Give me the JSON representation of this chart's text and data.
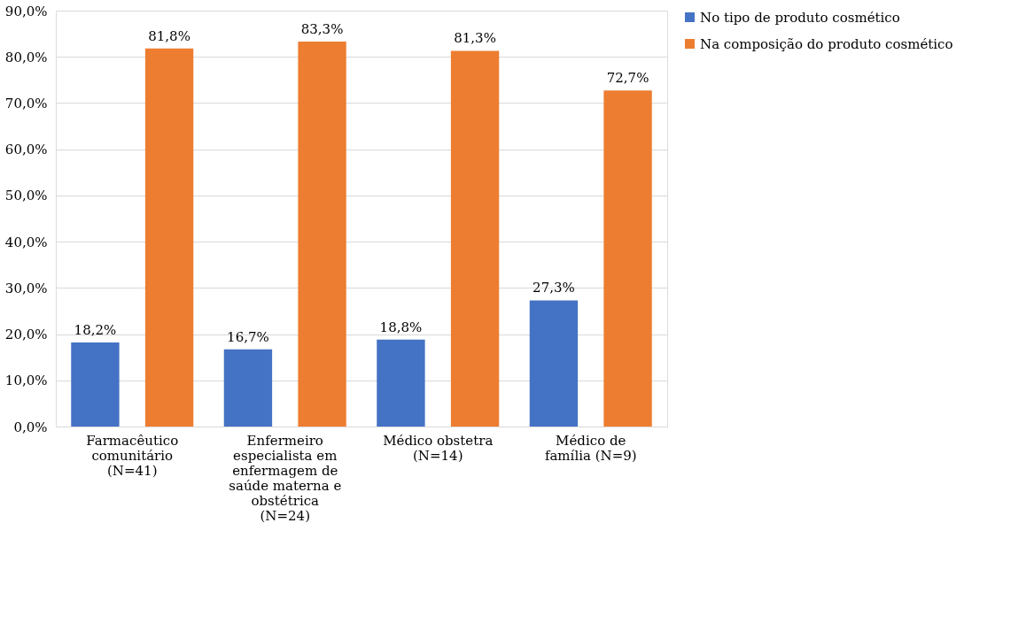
{
  "chart_data": {
    "type": "bar",
    "categories": [
      "Farmacêutico comunitário (N=41)",
      "Enfermeiro especialista em enfermagem de saúde materna e obstétrica (N=24)",
      "Médico obstetra (N=14)",
      "Médico de família (N=9)"
    ],
    "series": [
      {
        "name": "No tipo de produto cosmético",
        "color": "#4472c4",
        "values": [
          18.2,
          16.7,
          18.8,
          27.3
        ],
        "value_labels": [
          "18,2%",
          "16,7%",
          "18,8%",
          "27,3%"
        ]
      },
      {
        "name": "Na composição do produto cosmético",
        "color": "#ed7d31",
        "values": [
          81.8,
          83.3,
          81.3,
          72.7
        ],
        "value_labels": [
          "81,8%",
          "83,3%",
          "81,3%",
          "72,7%"
        ]
      }
    ],
    "ylim": [
      0,
      90
    ],
    "yticks": [
      {
        "value": 0,
        "label": "0,0%"
      },
      {
        "value": 10,
        "label": "10,0%"
      },
      {
        "value": 20,
        "label": "20,0%"
      },
      {
        "value": 30,
        "label": "30,0%"
      },
      {
        "value": 40,
        "label": "40,0%"
      },
      {
        "value": 50,
        "label": "50,0%"
      },
      {
        "value": 60,
        "label": "60,0%"
      },
      {
        "value": 70,
        "label": "70,0%"
      },
      {
        "value": 80,
        "label": "80,0%"
      },
      {
        "value": 90,
        "label": "90,0%"
      }
    ],
    "grid": "y",
    "legend": "right"
  }
}
